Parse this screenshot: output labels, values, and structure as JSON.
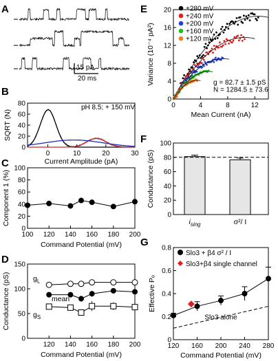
{
  "panels": {
    "A": {
      "label": "A",
      "scale_bar": {
        "current": "15 pA",
        "time": "20 ms"
      },
      "traces": [
        {
          "levels": [
            0,
            1
          ],
          "bursts": [
            [
              0.08,
              0.1
            ],
            [
              0.22,
              0.27
            ],
            [
              0.34,
              0.37
            ],
            [
              0.52,
              0.6
            ],
            [
              0.63,
              0.7
            ],
            [
              0.78,
              0.8
            ]
          ]
        },
        {
          "levels": [
            0,
            1,
            2
          ],
          "bursts": [
            [
              0.1,
              0.3
            ],
            [
              0.32,
              0.4
            ],
            [
              0.5,
              0.55
            ],
            [
              0.56,
              0.85
            ],
            [
              0.9,
              0.95
            ]
          ]
        },
        {
          "levels": [
            0,
            1
          ],
          "bursts": [
            [
              0.02,
              0.05
            ],
            [
              0.12,
              0.16
            ],
            [
              0.4,
              0.45
            ],
            [
              0.58,
              0.65
            ],
            [
              0.72,
              0.74
            ]
          ]
        }
      ]
    },
    "B": {
      "label": "B",
      "annotation": "pH 8.5; + 150 mV",
      "chart_data": {
        "type": "line",
        "xlabel": "Current Amplitude (pA)",
        "ylabel": "SQRT (N)",
        "xlim": [
          -7,
          30
        ],
        "ylim": [
          0,
          80
        ],
        "xticks": [
          0,
          10,
          20,
          30
        ],
        "yticks": [
          0,
          20,
          40,
          60,
          80
        ],
        "series": [
          {
            "color": "#000000",
            "values": {
              "mean": 0.1,
              "sd": 2.7,
              "amp": 68
            }
          },
          {
            "color": "#d62020",
            "values": {
              "mean": 16.8,
              "sd": 3.3,
              "amp": 16
            }
          },
          {
            "color": "#2030c0",
            "values": {
              "mean": 9.0,
              "sd": 10.0,
              "amp": 13
            }
          }
        ]
      }
    },
    "C": {
      "label": "C",
      "chart_data": {
        "type": "line",
        "xlabel": "Command Potential (mV)",
        "ylabel": "Component 1 (%)",
        "xlim": [
          100,
          200
        ],
        "ylim": [
          0,
          100
        ],
        "xticks": [
          100,
          120,
          140,
          160,
          180,
          200
        ],
        "yticks": [
          0,
          20,
          40,
          60,
          80,
          100
        ],
        "x": [
          100,
          120,
          140,
          150,
          160,
          180,
          200
        ],
        "y": [
          38,
          41,
          37,
          46,
          43,
          36,
          44
        ]
      }
    },
    "D": {
      "label": "D",
      "chart_data": {
        "type": "line",
        "xlabel": "Command Potential (mV)",
        "ylabel": "Conductance (pS)",
        "xlim": [
          100,
          200
        ],
        "ylim": [
          0,
          150
        ],
        "xticks": [
          120,
          140,
          160,
          180,
          200
        ],
        "yticks": [
          0,
          50,
          100,
          150
        ],
        "x": [
          120,
          140,
          150,
          160,
          180,
          200
        ],
        "series": [
          {
            "name": "gL",
            "values": [
              108,
              110,
              110,
              113,
              113,
              113
            ]
          },
          {
            "name": "mean",
            "values": [
              88,
              88,
              80,
              90,
              96,
              94
            ]
          },
          {
            "name": "gS",
            "values": [
              64,
              62,
              52,
              65,
              65,
              63
            ]
          }
        ],
        "labels": {
          "gl": "gL",
          "mean": "mean",
          "gs": "gS"
        }
      }
    },
    "E": {
      "label": "E",
      "chart_data": {
        "type": "scatter",
        "xlabel": "Mean Current (nA)",
        "ylabel": "Variance (10⁻⁴ pA²)",
        "xlim": [
          0,
          14
        ],
        "ylim": [
          0,
          20
        ],
        "xticks": [
          0,
          4,
          8,
          12
        ],
        "yticks": [
          0,
          4,
          8,
          12,
          16,
          20
        ],
        "series": [
          {
            "name": "+280 mV",
            "color": "#000000",
            "xmax": 12.5,
            "ymax": 19.5
          },
          {
            "name": "+240 mV",
            "color": "#e02020",
            "xmax": 10.5,
            "ymax": 14.5
          },
          {
            "name": "+200 mV",
            "color": "#2040e0",
            "xmax": 7.3,
            "ymax": 9.5
          },
          {
            "name": "+160 mV",
            "color": "#20c020",
            "xmax": 5.2,
            "ymax": 6.5
          },
          {
            "name": "+120 mV",
            "color": "#f08020",
            "xmax": 3.5,
            "ymax": 4.4
          }
        ],
        "fit_text": [
          "g = 82.7 ± 1.5 pS",
          "N = 1284.5 ± 73.6"
        ]
      }
    },
    "F": {
      "label": "F",
      "chart_data": {
        "type": "bar",
        "ylabel": "Conductance (pS)",
        "ylim": [
          0,
          100
        ],
        "yticks": [
          0,
          20,
          40,
          60,
          80,
          100
        ],
        "categories": [
          "i_sing",
          "σ²/ I"
        ],
        "category_main": [
          "i",
          "σ²/ I"
        ],
        "category_sub": [
          "sing",
          ""
        ],
        "values": [
          81,
          76.5
        ],
        "errors": [
          2,
          2.5
        ],
        "reference": 80
      }
    },
    "G": {
      "label": "G",
      "chart_data": {
        "type": "line",
        "xlabel": "Command Potential (mV)",
        "ylabel": "Effective Pₒ",
        "xlim": [
          120,
          280
        ],
        "ylim": [
          0,
          0.8
        ],
        "xticks": [
          120,
          160,
          200,
          240,
          280
        ],
        "yticks": [
          0,
          0.2,
          0.4,
          0.6,
          0.8
        ],
        "series": [
          {
            "name": "Slo3 + β4 σ² / I",
            "x": [
              120,
              160,
              200,
              240,
              280
            ],
            "values": [
              0.21,
              0.29,
              0.34,
              0.4,
              0.53
            ],
            "errors": [
              0.02,
              0.04,
              0.04,
              0.06,
              0.1
            ]
          },
          {
            "name": "Slo3+β4 single channel",
            "x": [
              150
            ],
            "values": [
              0.31
            ],
            "color": "#e02020"
          },
          {
            "name": "Slo3 alone",
            "x": [
              120,
              280
            ],
            "values": [
              0.1,
              0.29
            ]
          }
        ]
      }
    }
  }
}
